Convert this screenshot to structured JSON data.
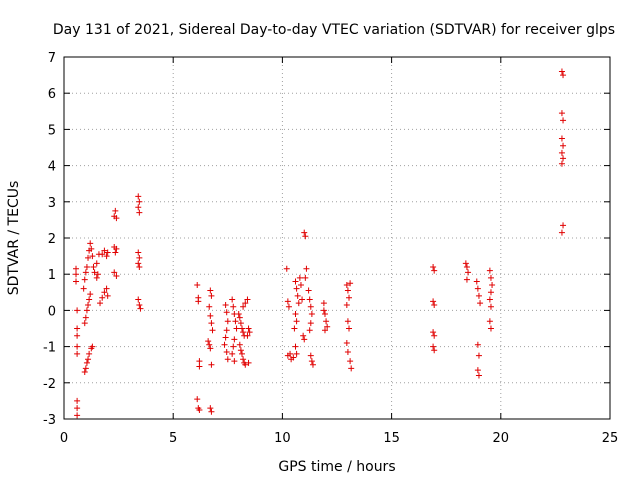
{
  "chart_data": {
    "type": "scatter",
    "title": "Day 131 of 2021, Sidereal Day-to-day VTEC variation (SDTVAR) for receiver glps",
    "xlabel": "GPS time / hours",
    "ylabel": "SDTVAR / TECUs",
    "xlim": [
      0,
      25
    ],
    "ylim": [
      -3,
      7
    ],
    "xticks": [
      "0",
      "5",
      "10",
      "15",
      "20",
      "25"
    ],
    "yticks": [
      "-3",
      "-2",
      "-1",
      "0",
      "1",
      "2",
      "3",
      "4",
      "5",
      "6",
      "7"
    ],
    "grid": true,
    "marker": "+",
    "color": "#e00000",
    "series": [
      {
        "name": "SDTVAR",
        "points": [
          [
            0.55,
            1.15
          ],
          [
            0.55,
            1.0
          ],
          [
            0.55,
            0.8
          ],
          [
            0.6,
            0.0
          ],
          [
            0.6,
            -0.5
          ],
          [
            0.6,
            -0.7
          ],
          [
            0.6,
            -1.0
          ],
          [
            0.6,
            -1.2
          ],
          [
            0.6,
            -2.5
          ],
          [
            0.6,
            -2.7
          ],
          [
            0.6,
            -2.9
          ],
          [
            0.95,
            -1.7
          ],
          [
            1.0,
            -1.6
          ],
          [
            1.05,
            -1.45
          ],
          [
            1.1,
            -1.35
          ],
          [
            1.15,
            -1.2
          ],
          [
            1.25,
            -1.05
          ],
          [
            1.3,
            -1.0
          ],
          [
            0.95,
            -0.35
          ],
          [
            1.0,
            -0.2
          ],
          [
            1.05,
            0.0
          ],
          [
            1.1,
            0.15
          ],
          [
            1.15,
            0.3
          ],
          [
            1.2,
            0.45
          ],
          [
            0.9,
            0.6
          ],
          [
            0.95,
            0.85
          ],
          [
            1.0,
            1.05
          ],
          [
            1.05,
            1.2
          ],
          [
            1.1,
            1.45
          ],
          [
            1.15,
            1.65
          ],
          [
            1.2,
            1.85
          ],
          [
            1.25,
            1.7
          ],
          [
            1.3,
            1.5
          ],
          [
            1.35,
            1.2
          ],
          [
            1.4,
            1.05
          ],
          [
            1.5,
            0.9
          ],
          [
            1.55,
            1.0
          ],
          [
            1.5,
            1.3
          ],
          [
            1.6,
            1.55
          ],
          [
            1.65,
            0.2
          ],
          [
            1.75,
            0.35
          ],
          [
            1.85,
            0.5
          ],
          [
            1.95,
            0.6
          ],
          [
            2.0,
            0.4
          ],
          [
            1.75,
            1.55
          ],
          [
            1.85,
            1.65
          ],
          [
            1.95,
            1.5
          ],
          [
            2.0,
            1.6
          ],
          [
            2.3,
            2.6
          ],
          [
            2.35,
            2.75
          ],
          [
            2.4,
            2.55
          ],
          [
            2.3,
            1.75
          ],
          [
            2.35,
            1.6
          ],
          [
            2.4,
            1.7
          ],
          [
            2.3,
            1.05
          ],
          [
            2.4,
            0.95
          ],
          [
            3.4,
            3.15
          ],
          [
            3.45,
            3.0
          ],
          [
            3.4,
            2.85
          ],
          [
            3.45,
            2.7
          ],
          [
            3.4,
            1.6
          ],
          [
            3.45,
            1.45
          ],
          [
            3.4,
            1.3
          ],
          [
            3.45,
            1.2
          ],
          [
            3.4,
            0.3
          ],
          [
            3.45,
            0.15
          ],
          [
            3.5,
            0.05
          ],
          [
            6.1,
            0.7
          ],
          [
            6.15,
            0.35
          ],
          [
            6.15,
            0.25
          ],
          [
            6.2,
            -1.4
          ],
          [
            6.2,
            -1.55
          ],
          [
            6.1,
            -2.45
          ],
          [
            6.15,
            -2.7
          ],
          [
            6.2,
            -2.75
          ],
          [
            6.7,
            0.55
          ],
          [
            6.75,
            0.4
          ],
          [
            6.65,
            0.1
          ],
          [
            6.7,
            -0.15
          ],
          [
            6.75,
            -0.35
          ],
          [
            6.8,
            -0.55
          ],
          [
            6.6,
            -0.85
          ],
          [
            6.65,
            -0.95
          ],
          [
            6.7,
            -1.05
          ],
          [
            6.75,
            -1.5
          ],
          [
            6.7,
            -2.7
          ],
          [
            6.75,
            -2.8
          ],
          [
            7.4,
            0.15
          ],
          [
            7.45,
            -0.05
          ],
          [
            7.5,
            -0.3
          ],
          [
            7.45,
            -0.55
          ],
          [
            7.4,
            -0.75
          ],
          [
            7.35,
            -0.95
          ],
          [
            7.45,
            -1.15
          ],
          [
            7.5,
            -1.35
          ],
          [
            7.7,
            0.3
          ],
          [
            7.75,
            0.1
          ],
          [
            7.8,
            -0.1
          ],
          [
            7.85,
            -0.3
          ],
          [
            7.9,
            -0.5
          ],
          [
            7.8,
            -0.8
          ],
          [
            7.75,
            -1.0
          ],
          [
            7.7,
            -1.2
          ],
          [
            7.8,
            -1.4
          ],
          [
            8.0,
            -0.1
          ],
          [
            8.05,
            -0.2
          ],
          [
            8.1,
            -0.35
          ],
          [
            8.15,
            -0.5
          ],
          [
            8.2,
            -0.6
          ],
          [
            8.25,
            -0.7
          ],
          [
            8.05,
            -0.95
          ],
          [
            8.1,
            -1.1
          ],
          [
            8.15,
            -1.2
          ],
          [
            8.2,
            -1.35
          ],
          [
            8.25,
            -1.45
          ],
          [
            8.3,
            -1.5
          ],
          [
            8.2,
            0.1
          ],
          [
            8.3,
            0.2
          ],
          [
            8.4,
            0.3
          ],
          [
            8.45,
            -0.5
          ],
          [
            8.5,
            -0.6
          ],
          [
            8.4,
            -0.7
          ],
          [
            8.45,
            -1.45
          ],
          [
            10.2,
            1.15
          ],
          [
            10.25,
            0.25
          ],
          [
            10.3,
            0.1
          ],
          [
            10.35,
            -1.2
          ],
          [
            10.4,
            -1.35
          ],
          [
            10.25,
            -1.25
          ],
          [
            10.6,
            0.8
          ],
          [
            10.65,
            0.6
          ],
          [
            10.7,
            0.4
          ],
          [
            10.75,
            0.2
          ],
          [
            10.6,
            -0.1
          ],
          [
            10.65,
            -0.3
          ],
          [
            10.55,
            -0.5
          ],
          [
            10.6,
            -1.0
          ],
          [
            10.65,
            -1.2
          ],
          [
            10.5,
            -1.3
          ],
          [
            10.8,
            0.9
          ],
          [
            10.85,
            0.7
          ],
          [
            10.9,
            0.3
          ],
          [
            10.95,
            -0.7
          ],
          [
            11.0,
            -0.8
          ],
          [
            11.0,
            2.15
          ],
          [
            11.05,
            2.05
          ],
          [
            11.1,
            1.15
          ],
          [
            11.05,
            0.9
          ],
          [
            11.2,
            0.55
          ],
          [
            11.25,
            0.3
          ],
          [
            11.3,
            0.1
          ],
          [
            11.35,
            -0.1
          ],
          [
            11.3,
            -0.35
          ],
          [
            11.25,
            -0.55
          ],
          [
            11.3,
            -1.25
          ],
          [
            11.35,
            -1.4
          ],
          [
            11.4,
            -1.5
          ],
          [
            11.9,
            0.0
          ],
          [
            11.95,
            -0.1
          ],
          [
            12.0,
            -0.3
          ],
          [
            12.05,
            -0.45
          ],
          [
            11.95,
            -0.55
          ],
          [
            11.9,
            0.2
          ],
          [
            12.95,
            0.7
          ],
          [
            13.0,
            0.55
          ],
          [
            13.05,
            0.35
          ],
          [
            12.95,
            0.15
          ],
          [
            13.0,
            -0.3
          ],
          [
            13.05,
            -0.5
          ],
          [
            12.95,
            -0.9
          ],
          [
            13.0,
            -1.15
          ],
          [
            13.1,
            -1.4
          ],
          [
            13.15,
            -1.6
          ],
          [
            13.1,
            0.75
          ],
          [
            16.9,
            1.2
          ],
          [
            16.95,
            1.1
          ],
          [
            16.9,
            0.25
          ],
          [
            16.95,
            0.15
          ],
          [
            16.9,
            -0.6
          ],
          [
            16.95,
            -0.7
          ],
          [
            16.9,
            -1.0
          ],
          [
            16.95,
            -1.1
          ],
          [
            18.4,
            1.3
          ],
          [
            18.45,
            1.2
          ],
          [
            18.5,
            1.05
          ],
          [
            18.45,
            0.85
          ],
          [
            18.9,
            0.8
          ],
          [
            18.95,
            0.6
          ],
          [
            19.0,
            0.4
          ],
          [
            19.05,
            0.2
          ],
          [
            18.95,
            -0.95
          ],
          [
            19.0,
            -1.25
          ],
          [
            18.95,
            -1.65
          ],
          [
            19.0,
            -1.8
          ],
          [
            19.5,
            1.1
          ],
          [
            19.55,
            0.9
          ],
          [
            19.6,
            0.7
          ],
          [
            19.55,
            0.5
          ],
          [
            19.5,
            0.3
          ],
          [
            19.55,
            0.1
          ],
          [
            19.5,
            -0.3
          ],
          [
            19.55,
            -0.5
          ],
          [
            22.8,
            6.6
          ],
          [
            22.85,
            6.5
          ],
          [
            22.8,
            5.45
          ],
          [
            22.85,
            5.25
          ],
          [
            22.8,
            4.75
          ],
          [
            22.85,
            4.55
          ],
          [
            22.8,
            4.35
          ],
          [
            22.85,
            4.2
          ],
          [
            22.8,
            4.05
          ],
          [
            22.85,
            2.35
          ],
          [
            22.8,
            2.15
          ]
        ]
      }
    ]
  }
}
